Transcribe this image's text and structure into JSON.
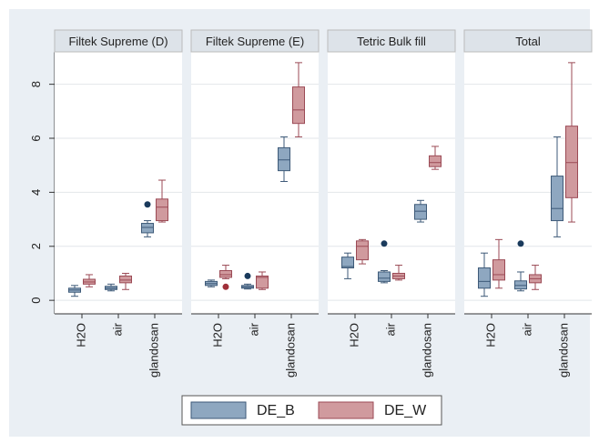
{
  "chart_data": {
    "type": "box",
    "categories": [
      "H2O",
      "air",
      "glandosan"
    ],
    "ylim": [
      -0.5,
      9.2
    ],
    "yticks": [
      0,
      2,
      4,
      6,
      8
    ],
    "grid": true,
    "series": [
      {
        "name": "DE_B",
        "color": "#8ea7c0"
      },
      {
        "name": "DE_W",
        "color": "#d09a9e"
      }
    ],
    "panels": [
      {
        "title": "Filtek Supreme (D)",
        "data": [
          [
            {
              "min": 0.15,
              "q1": 0.3,
              "median": 0.38,
              "q3": 0.45,
              "max": 0.55
            },
            {
              "min": 0.35,
              "q1": 0.4,
              "median": 0.45,
              "q3": 0.52,
              "max": 0.6
            },
            {
              "min": 2.35,
              "q1": 2.5,
              "median": 2.7,
              "q3": 2.85,
              "max": 2.95,
              "outliers": [
                3.55
              ]
            }
          ],
          [
            {
              "min": 0.5,
              "q1": 0.6,
              "median": 0.68,
              "q3": 0.78,
              "max": 0.95
            },
            {
              "min": 0.4,
              "q1": 0.65,
              "median": 0.75,
              "q3": 0.9,
              "max": 1.0
            },
            {
              "min": 2.9,
              "q1": 2.95,
              "median": 3.45,
              "q3": 3.75,
              "max": 4.45
            }
          ]
        ]
      },
      {
        "title": "Filtek Supreme (E)",
        "data": [
          [
            {
              "min": 0.5,
              "q1": 0.55,
              "median": 0.62,
              "q3": 0.7,
              "max": 0.75
            },
            {
              "min": 0.42,
              "q1": 0.45,
              "median": 0.5,
              "q3": 0.55,
              "max": 0.6,
              "outliers": [
                0.9
              ]
            },
            {
              "min": 4.4,
              "q1": 4.8,
              "median": 5.2,
              "q3": 5.65,
              "max": 6.05
            }
          ],
          [
            {
              "min": 0.8,
              "q1": 0.85,
              "median": 0.95,
              "q3": 1.1,
              "max": 1.3,
              "outliers": [
                0.5
              ]
            },
            {
              "min": 0.4,
              "q1": 0.45,
              "median": 0.85,
              "q3": 0.9,
              "max": 1.05
            },
            {
              "min": 6.05,
              "q1": 6.55,
              "median": 7.05,
              "q3": 7.9,
              "max": 8.8
            }
          ]
        ]
      },
      {
        "title": "Tetric Bulk fill",
        "data": [
          [
            {
              "min": 0.8,
              "q1": 1.2,
              "median": 1.25,
              "q3": 1.6,
              "max": 1.75
            },
            {
              "min": 0.65,
              "q1": 0.7,
              "median": 0.82,
              "q3": 1.05,
              "max": 1.1,
              "outliers": [
                2.1
              ]
            },
            {
              "min": 2.9,
              "q1": 3.0,
              "median": 3.3,
              "q3": 3.55,
              "max": 3.7
            }
          ],
          [
            {
              "min": 1.35,
              "q1": 1.5,
              "median": 2.0,
              "q3": 2.2,
              "max": 2.25
            },
            {
              "min": 0.75,
              "q1": 0.8,
              "median": 0.9,
              "q3": 1.0,
              "max": 1.3
            },
            {
              "min": 4.85,
              "q1": 4.95,
              "median": 5.1,
              "q3": 5.35,
              "max": 5.7
            }
          ]
        ]
      },
      {
        "title": "Total",
        "data": [
          [
            {
              "min": 0.15,
              "q1": 0.45,
              "median": 0.7,
              "q3": 1.2,
              "max": 1.75
            },
            {
              "min": 0.35,
              "q1": 0.42,
              "median": 0.55,
              "q3": 0.72,
              "max": 1.05,
              "outliers": [
                2.1
              ]
            },
            {
              "min": 2.35,
              "q1": 2.95,
              "median": 3.4,
              "q3": 4.6,
              "max": 6.05
            }
          ],
          [
            {
              "min": 0.45,
              "q1": 0.75,
              "median": 0.95,
              "q3": 1.5,
              "max": 2.25
            },
            {
              "min": 0.4,
              "q1": 0.65,
              "median": 0.8,
              "q3": 0.95,
              "max": 1.3
            },
            {
              "min": 2.9,
              "q1": 3.8,
              "median": 5.1,
              "q3": 6.45,
              "max": 8.8
            }
          ]
        ]
      }
    ]
  }
}
